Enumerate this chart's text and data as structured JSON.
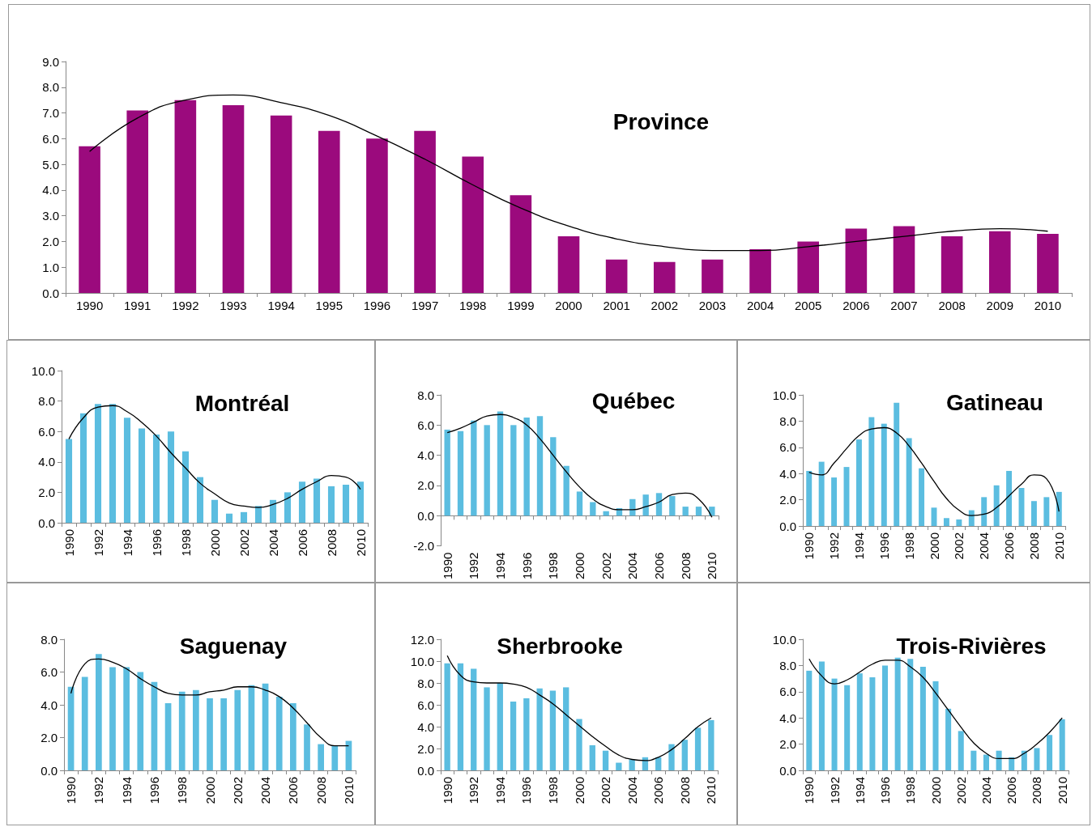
{
  "chart_data": [
    {
      "type": "bar",
      "title": "Province",
      "categories": [
        "1990",
        "1991",
        "1992",
        "1993",
        "1994",
        "1995",
        "1996",
        "1997",
        "1998",
        "1999",
        "2000",
        "2001",
        "2002",
        "2003",
        "2004",
        "2005",
        "2006",
        "2007",
        "2008",
        "2009",
        "2010"
      ],
      "ylim": [
        0,
        9
      ],
      "yticks": [
        {
          "value": 0,
          "label": "0.0"
        },
        {
          "value": 1,
          "label": "1.0"
        },
        {
          "value": 2,
          "label": "2.0"
        },
        {
          "value": 3,
          "label": "3.0"
        },
        {
          "value": 4,
          "label": "4.0"
        },
        {
          "value": 5,
          "label": "5.0"
        },
        {
          "value": 6,
          "label": "6.0"
        },
        {
          "value": 7,
          "label": "7.0"
        },
        {
          "value": 8,
          "label": "8.0"
        },
        {
          "value": 9,
          "label": "9.0"
        }
      ],
      "marker": "none",
      "series": [
        {
          "color": "#9b0a7d",
          "values": [
            5.7,
            7.1,
            7.5,
            7.3,
            6.9,
            6.3,
            6.0,
            6.3,
            5.3,
            3.8,
            2.2,
            1.3,
            1.2,
            1.3,
            1.7,
            2.0,
            2.5,
            2.6,
            2.2,
            2.4,
            2.3
          ]
        },
        {
          "type": "line",
          "color": "#000000",
          "values": [
            5.5,
            6.8,
            7.5,
            7.7,
            7.4,
            6.9,
            6.1,
            5.2,
            4.2,
            3.3,
            2.6,
            2.1,
            1.8,
            1.65,
            1.65,
            1.8,
            2.0,
            2.2,
            2.4,
            2.5,
            2.4
          ]
        }
      ]
    },
    {
      "type": "bar",
      "title": "Montréal",
      "categories": [
        "1990",
        null,
        "1992",
        null,
        "1994",
        null,
        "1996",
        null,
        "1998",
        null,
        "2000",
        null,
        "2002",
        null,
        "2004",
        null,
        "2006",
        null,
        "2008",
        null,
        "2010"
      ],
      "ylim": [
        0,
        10
      ],
      "yticks": [
        {
          "value": 0,
          "label": "0.0"
        },
        {
          "value": 2,
          "label": "2.0"
        },
        {
          "value": 4,
          "label": "4.0"
        },
        {
          "value": 6,
          "label": "6.0"
        },
        {
          "value": 8,
          "label": "8.0"
        },
        {
          "value": 10,
          "label": "10.0"
        }
      ],
      "marker": "none",
      "series": [
        {
          "color": "#5bbde0",
          "values": [
            5.5,
            7.2,
            7.8,
            7.8,
            6.9,
            6.2,
            5.8,
            6.0,
            4.7,
            3.0,
            1.5,
            0.6,
            0.7,
            1.1,
            1.5,
            2.0,
            2.7,
            2.9,
            2.4,
            2.5,
            2.7
          ]
        },
        {
          "type": "line",
          "color": "#000000",
          "values": [
            5.5,
            6.9,
            7.6,
            7.7,
            7.3,
            6.6,
            5.7,
            4.6,
            3.6,
            2.6,
            1.9,
            1.3,
            1.1,
            1.0,
            1.2,
            1.6,
            2.2,
            2.7,
            3.1,
            3.0,
            2.2
          ]
        }
      ]
    },
    {
      "type": "bar",
      "title": "Québec",
      "categories": [
        "1990",
        null,
        "1992",
        null,
        "1994",
        null,
        "1996",
        null,
        "1998",
        null,
        "2000",
        null,
        "2002",
        null,
        "2004",
        null,
        "2006",
        null,
        "2008",
        null,
        "2010"
      ],
      "ylim": [
        -2,
        8
      ],
      "yticks": [
        {
          "value": -2,
          "label": "-2.0"
        },
        {
          "value": 0,
          "label": "0.0"
        },
        {
          "value": 2,
          "label": "2.0"
        },
        {
          "value": 4,
          "label": "4.0"
        },
        {
          "value": 6,
          "label": "6.0"
        },
        {
          "value": 8,
          "label": "8.0"
        }
      ],
      "marker": "none",
      "series": [
        {
          "color": "#5bbde0",
          "values": [
            5.7,
            5.6,
            6.3,
            6.0,
            6.9,
            6.0,
            6.5,
            6.6,
            5.2,
            3.3,
            1.6,
            0.9,
            0.3,
            0.5,
            1.1,
            1.4,
            1.5,
            1.3,
            0.6,
            0.6,
            0.6
          ]
        },
        {
          "type": "line",
          "color": "#000000",
          "values": [
            5.5,
            5.8,
            6.2,
            6.6,
            6.7,
            6.5,
            6.0,
            5.1,
            4.0,
            2.9,
            1.9,
            1.1,
            0.6,
            0.4,
            0.4,
            0.6,
            0.9,
            1.4,
            1.5,
            1.1,
            -0.1
          ]
        }
      ]
    },
    {
      "type": "bar",
      "title": "Gatineau",
      "categories": [
        "1990",
        null,
        "1992",
        null,
        "1994",
        null,
        "1996",
        null,
        "1998",
        null,
        "2000",
        null,
        "2002",
        null,
        "2004",
        null,
        "2006",
        null,
        "2008",
        null,
        "2010"
      ],
      "ylim": [
        0,
        10
      ],
      "yticks": [
        {
          "value": 0,
          "label": "0.0"
        },
        {
          "value": 2,
          "label": "2.0"
        },
        {
          "value": 4,
          "label": "4.0"
        },
        {
          "value": 6,
          "label": "6.0"
        },
        {
          "value": 8,
          "label": "8.0"
        },
        {
          "value": 10,
          "label": "10.0"
        }
      ],
      "marker": "none",
      "series": [
        {
          "color": "#5bbde0",
          "values": [
            4.2,
            4.9,
            3.7,
            4.5,
            6.6,
            8.3,
            7.8,
            9.4,
            6.7,
            4.4,
            1.4,
            0.6,
            0.5,
            1.2,
            2.2,
            3.1,
            4.2,
            2.9,
            1.9,
            2.2,
            2.6
          ]
        },
        {
          "type": "line",
          "color": "#000000",
          "values": [
            4.1,
            3.9,
            4.8,
            5.9,
            6.9,
            7.4,
            7.5,
            7.1,
            6.1,
            4.8,
            3.4,
            2.1,
            1.2,
            0.8,
            0.9,
            1.4,
            2.3,
            3.2,
            3.9,
            3.6,
            1.1
          ]
        }
      ]
    },
    {
      "type": "bar",
      "title": "Saguenay",
      "categories": [
        "1990",
        null,
        "1992",
        null,
        "1994",
        null,
        "1996",
        null,
        "1998",
        null,
        "2000",
        null,
        "2002",
        null,
        "2004",
        null,
        "2006",
        null,
        "2008",
        null,
        "2010"
      ],
      "ylim": [
        0,
        8
      ],
      "yticks": [
        {
          "value": 0,
          "label": "0.0"
        },
        {
          "value": 2,
          "label": "2.0"
        },
        {
          "value": 4,
          "label": "4.0"
        },
        {
          "value": 6,
          "label": "6.0"
        },
        {
          "value": 8,
          "label": "8.0"
        }
      ],
      "marker": "none",
      "series": [
        {
          "color": "#5bbde0",
          "values": [
            5.1,
            5.7,
            7.1,
            6.3,
            6.3,
            6.0,
            5.4,
            4.1,
            4.8,
            4.9,
            4.4,
            4.4,
            4.9,
            5.2,
            5.3,
            4.5,
            4.1,
            2.8,
            1.6,
            1.5,
            1.8
          ]
        },
        {
          "type": "line",
          "color": "#000000",
          "values": [
            4.7,
            6.5,
            6.8,
            6.6,
            6.2,
            5.6,
            5.1,
            4.7,
            4.6,
            4.6,
            4.8,
            4.9,
            5.1,
            5.1,
            4.9,
            4.5,
            3.8,
            2.9,
            2.0,
            1.5,
            1.5
          ]
        }
      ]
    },
    {
      "type": "bar",
      "title": "Sherbrooke",
      "categories": [
        "1990",
        null,
        "1992",
        null,
        "1994",
        null,
        "1996",
        null,
        "1998",
        null,
        "2000",
        null,
        "2002",
        null,
        "2004",
        null,
        "2006",
        null,
        "2008",
        null,
        "2010"
      ],
      "ylim": [
        0,
        12
      ],
      "yticks": [
        {
          "value": 0,
          "label": "0.0"
        },
        {
          "value": 2,
          "label": "2.0"
        },
        {
          "value": 4,
          "label": "4.0"
        },
        {
          "value": 6,
          "label": "6.0"
        },
        {
          "value": 8,
          "label": "8.0"
        },
        {
          "value": 10,
          "label": "10.0"
        },
        {
          "value": 12,
          "label": "12.0"
        }
      ],
      "marker": "none",
      "series": [
        {
          "color": "#5bbde0",
          "values": [
            9.8,
            9.8,
            9.3,
            7.6,
            8.0,
            6.3,
            6.6,
            7.5,
            7.3,
            7.6,
            4.7,
            2.3,
            1.8,
            0.7,
            1.0,
            1.2,
            1.2,
            2.4,
            2.8,
            3.9,
            4.6
          ]
        },
        {
          "type": "line",
          "color": "#000000",
          "values": [
            10.5,
            8.7,
            8.1,
            8.0,
            8.0,
            7.9,
            7.6,
            6.9,
            6.1,
            5.1,
            4.1,
            3.1,
            2.2,
            1.4,
            1.0,
            0.9,
            1.2,
            1.9,
            2.9,
            4.0,
            4.8
          ]
        }
      ]
    },
    {
      "type": "bar",
      "title": "Trois-Rivières",
      "categories": [
        "1990",
        null,
        "1992",
        null,
        "1994",
        null,
        "1996",
        null,
        "1998",
        null,
        "2000",
        null,
        "2002",
        null,
        "2004",
        null,
        "2006",
        null,
        "2008",
        null,
        "2010"
      ],
      "ylim": [
        0,
        10
      ],
      "yticks": [
        {
          "value": 0,
          "label": "0.0"
        },
        {
          "value": 2,
          "label": "2.0"
        },
        {
          "value": 4,
          "label": "4.0"
        },
        {
          "value": 6,
          "label": "6.0"
        },
        {
          "value": 8,
          "label": "8.0"
        },
        {
          "value": 10,
          "label": "10.0"
        }
      ],
      "marker": "none",
      "series": [
        {
          "color": "#5bbde0",
          "values": [
            7.6,
            8.3,
            7.0,
            6.5,
            7.4,
            7.1,
            8.0,
            8.6,
            8.5,
            7.9,
            6.8,
            4.7,
            3.0,
            1.5,
            1.2,
            1.5,
            1.0,
            1.5,
            1.7,
            2.7,
            3.9
          ]
        },
        {
          "type": "line",
          "color": "#000000",
          "values": [
            8.5,
            7.2,
            6.6,
            6.9,
            7.5,
            8.1,
            8.4,
            8.4,
            7.9,
            7.1,
            5.9,
            4.6,
            3.3,
            2.1,
            1.3,
            0.9,
            0.9,
            1.3,
            2.0,
            2.9,
            4.0
          ]
        }
      ]
    }
  ]
}
